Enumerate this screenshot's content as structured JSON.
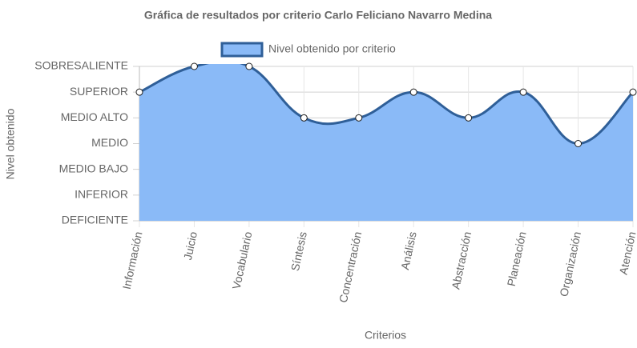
{
  "chart_data": {
    "type": "area",
    "title": "Gráfica de resultados por criterio Carlo Feliciano Navarro Medina",
    "x_label": "Criterios",
    "y_label": "Nivel obtenido",
    "categories": [
      "Información",
      "Juicio",
      "Vocabulario",
      "Síntesis",
      "Concentración",
      "Análisis",
      "Abstracción",
      "Planeación",
      "Organización",
      "Atención"
    ],
    "series": [
      {
        "name": "Nivel obtenido por criterio",
        "color": "#2f5f98",
        "fill": "#8abaf7",
        "values": [
          5,
          6,
          6,
          4,
          4,
          5,
          4,
          5,
          3,
          5
        ]
      }
    ],
    "ylim": [
      0,
      6
    ],
    "yticks": [
      {
        "value": 0,
        "label": "DEFICIENTE"
      },
      {
        "value": 1,
        "label": "INFERIOR"
      },
      {
        "value": 2,
        "label": "MEDIO BAJO"
      },
      {
        "value": 3,
        "label": "MEDIO"
      },
      {
        "value": 4,
        "label": "MEDIO ALTO"
      },
      {
        "value": 5,
        "label": "SUPERIOR"
      },
      {
        "value": 6,
        "label": "SOBRESALIENTE"
      }
    ],
    "grid": true,
    "legend": "top"
  }
}
